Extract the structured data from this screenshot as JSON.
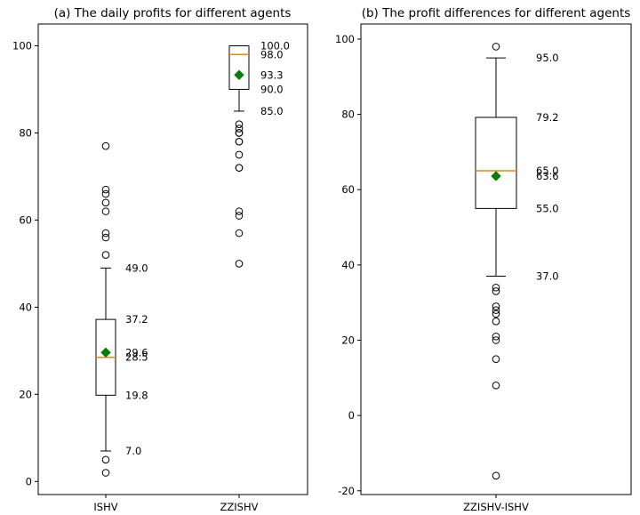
{
  "chart_data": [
    {
      "type": "boxplot",
      "title": "(a) The daily profits for different agents",
      "xlabel": "",
      "ylabel": "",
      "ylim": [
        -3,
        105
      ],
      "yticks": [
        0,
        20,
        40,
        60,
        80,
        100
      ],
      "categories": [
        "ISHV",
        "ZZISHV"
      ],
      "boxes": [
        {
          "category": "ISHV",
          "whisker_low": 7.0,
          "q1": 19.8,
          "median": 28.5,
          "q3": 37.2,
          "whisker_high": 49.0,
          "mean": 29.6,
          "outliers": [
            2,
            5,
            52,
            56,
            57,
            62,
            64,
            66,
            67,
            77
          ]
        },
        {
          "category": "ZZISHV",
          "whisker_low": 85.0,
          "q1": 90.0,
          "median": 98.0,
          "q3": 100.0,
          "whisker_high": 100.0,
          "mean": 93.3,
          "outliers": [
            50,
            57,
            61,
            62,
            72,
            72,
            75,
            78,
            78,
            80,
            80,
            81,
            82
          ]
        }
      ],
      "annotations": [
        {
          "box": 0,
          "value": 49.0,
          "label": "49.0"
        },
        {
          "box": 0,
          "value": 37.2,
          "label": "37.2"
        },
        {
          "box": 0,
          "value": 29.6,
          "label": "29.6"
        },
        {
          "box": 0,
          "value": 28.5,
          "label": "28.5"
        },
        {
          "box": 0,
          "value": 19.8,
          "label": "19.8"
        },
        {
          "box": 0,
          "value": 7.0,
          "label": "7.0"
        },
        {
          "box": 1,
          "value": 100.0,
          "label": "100.0"
        },
        {
          "box": 1,
          "value": 98.0,
          "label": "98.0"
        },
        {
          "box": 1,
          "value": 93.3,
          "label": "93.3"
        },
        {
          "box": 1,
          "value": 90.0,
          "label": "90.0"
        },
        {
          "box": 1,
          "value": 85.0,
          "label": "85.0"
        }
      ],
      "colors": {
        "median": "#ff7f0e",
        "mean": "#008000",
        "box": "#000000"
      }
    },
    {
      "type": "boxplot",
      "title": "(b) The profit differences for different agents",
      "xlabel": "",
      "ylabel": "",
      "ylim": [
        -21,
        104
      ],
      "yticks": [
        -20,
        0,
        20,
        40,
        60,
        80,
        100
      ],
      "categories": [
        "ZZISHV-ISHV"
      ],
      "boxes": [
        {
          "category": "ZZISHV-ISHV",
          "whisker_low": 37.0,
          "q1": 55.0,
          "median": 65.0,
          "q3": 79.2,
          "whisker_high": 95.0,
          "mean": 63.6,
          "outliers": [
            -16,
            8,
            15,
            20,
            21,
            25,
            27,
            28,
            29,
            33,
            34,
            98
          ]
        }
      ],
      "annotations": [
        {
          "box": 0,
          "value": 95.0,
          "label": "95.0"
        },
        {
          "box": 0,
          "value": 79.2,
          "label": "79.2"
        },
        {
          "box": 0,
          "value": 65.0,
          "label": "65.0"
        },
        {
          "box": 0,
          "value": 63.6,
          "label": "63.6"
        },
        {
          "box": 0,
          "value": 55.0,
          "label": "55.0"
        },
        {
          "box": 0,
          "value": 37.0,
          "label": "37.0"
        }
      ],
      "colors": {
        "median": "#ff7f0e",
        "mean": "#008000",
        "box": "#000000"
      }
    }
  ]
}
